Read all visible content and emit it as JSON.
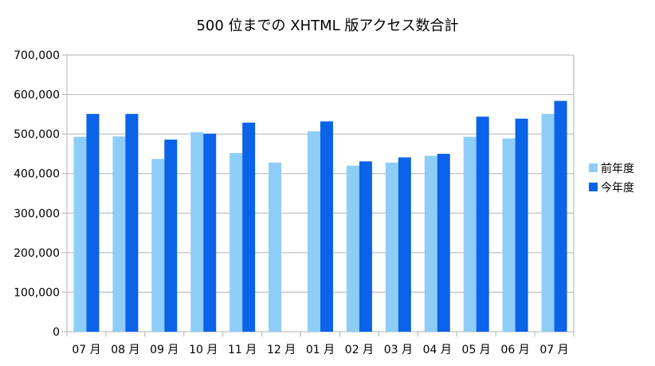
{
  "chart_data": {
    "type": "bar",
    "title": "500 位までの XHTML 版アクセス数合計",
    "categories": [
      "07 月",
      "08 月",
      "09 月",
      "10 月",
      "11 月",
      "12 月",
      "01 月",
      "02 月",
      "03 月",
      "04 月",
      "05 月",
      "06 月",
      "07 月"
    ],
    "series": [
      {
        "name": "前年度",
        "color": "#8ecdf8",
        "values": [
          493000,
          494000,
          437000,
          505000,
          452000,
          428000,
          507000,
          420000,
          428000,
          445000,
          493000,
          489000,
          551000
        ]
      },
      {
        "name": "今年度",
        "color": "#0a63e8",
        "values": [
          551000,
          551000,
          486000,
          501000,
          529000,
          null,
          532000,
          431000,
          441000,
          450000,
          544000,
          539000,
          584000
        ]
      }
    ],
    "ylim": [
      0,
      700000
    ],
    "yticks": [
      0,
      100000,
      200000,
      300000,
      400000,
      500000,
      600000,
      700000
    ],
    "ytick_labels": [
      "0",
      "100,000",
      "200,000",
      "300,000",
      "400,000",
      "500,000",
      "600,000",
      "700,000"
    ],
    "grid": true,
    "legend_position": "right",
    "gridline_color": "#b3b3b3"
  }
}
